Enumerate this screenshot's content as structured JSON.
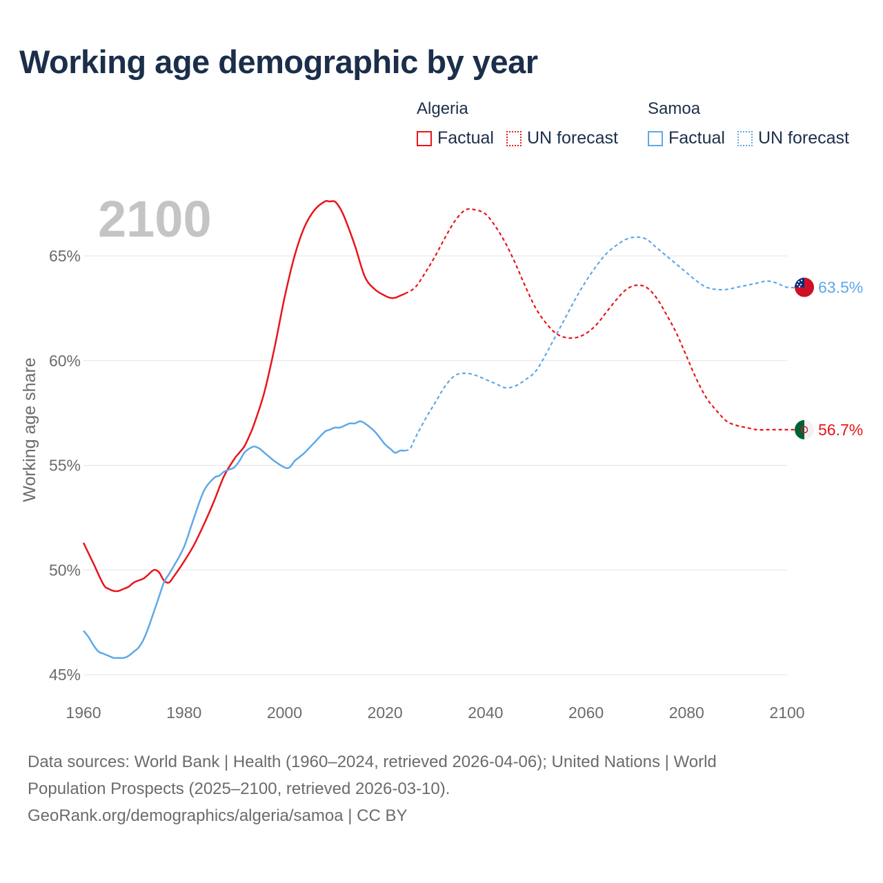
{
  "title": "Working age demographic by year",
  "legend": {
    "algeria": {
      "country": "Algeria",
      "factual": "Factual",
      "forecast": "UN forecast",
      "color": "#e8141a"
    },
    "samoa": {
      "country": "Samoa",
      "factual": "Factual",
      "forecast": "UN forecast",
      "color": "#5da8e8"
    }
  },
  "footer": {
    "line1": "Data sources: World Bank | Health (1960–2024, retrieved 2026-04-06); United Nations | World",
    "line2": "Population Prospects (2025–2100, retrieved 2026-03-10).",
    "line3": "GeoRank.org/demographics/algeria/samoa | CC BY"
  },
  "chart_data": {
    "type": "line",
    "year_label": "2100",
    "ylabel": "Working age share",
    "xlim": [
      1960,
      2100
    ],
    "ylim": [
      45,
      68
    ],
    "xticks": [
      1960,
      1980,
      2000,
      2020,
      2040,
      2060,
      2080,
      2100
    ],
    "xtick_labels": [
      "1960",
      "1980",
      "2000",
      "2020",
      "2040",
      "2060",
      "2080",
      "2100"
    ],
    "yticks": [
      45,
      50,
      55,
      60,
      65
    ],
    "ytick_labels": [
      "45%",
      "50%",
      "55%",
      "60%",
      "65%"
    ],
    "grid": true,
    "series": [
      {
        "name": "Algeria",
        "color": "#e8141a",
        "end_label": "56.7%",
        "factual": {
          "x": [
            1960,
            1962,
            1964,
            1965,
            1966,
            1967,
            1968,
            1969,
            1970,
            1971,
            1972,
            1973,
            1974,
            1975,
            1976,
            1977,
            1978,
            1980,
            1982,
            1984,
            1986,
            1988,
            1990,
            1991,
            1992,
            1993,
            1994,
            1996,
            1998,
            2000,
            2002,
            2004,
            2006,
            2008,
            2009,
            2010,
            2011,
            2012,
            2014,
            2016,
            2018,
            2020,
            2021,
            2022,
            2023,
            2024
          ],
          "y": [
            51.3,
            50.3,
            49.3,
            49.1,
            49.0,
            49.0,
            49.1,
            49.2,
            49.4,
            49.5,
            49.6,
            49.8,
            50.0,
            49.9,
            49.5,
            49.4,
            49.7,
            50.4,
            51.2,
            52.2,
            53.3,
            54.5,
            55.3,
            55.6,
            55.9,
            56.4,
            57.0,
            58.5,
            60.6,
            63.0,
            65.0,
            66.4,
            67.2,
            67.6,
            67.6,
            67.6,
            67.3,
            66.8,
            65.5,
            64.0,
            63.4,
            63.1,
            63.0,
            63.0,
            63.1,
            63.2
          ]
        },
        "forecast": {
          "x": [
            2024,
            2026,
            2028,
            2030,
            2032,
            2034,
            2036,
            2038,
            2040,
            2042,
            2044,
            2046,
            2048,
            2050,
            2052,
            2054,
            2056,
            2058,
            2060,
            2062,
            2064,
            2066,
            2068,
            2070,
            2072,
            2074,
            2076,
            2078,
            2080,
            2082,
            2084,
            2086,
            2088,
            2090,
            2092,
            2094,
            2096,
            2098,
            2100,
            2103
          ],
          "y": [
            63.2,
            63.5,
            64.2,
            65.0,
            65.9,
            66.7,
            67.2,
            67.2,
            67.0,
            66.4,
            65.6,
            64.6,
            63.5,
            62.5,
            61.8,
            61.3,
            61.1,
            61.1,
            61.3,
            61.7,
            62.3,
            62.9,
            63.4,
            63.6,
            63.5,
            63.0,
            62.2,
            61.3,
            60.2,
            59.1,
            58.2,
            57.6,
            57.1,
            56.9,
            56.8,
            56.7,
            56.7,
            56.7,
            56.7,
            56.7
          ]
        }
      },
      {
        "name": "Samoa",
        "color": "#5da8e8",
        "end_label": "63.5%",
        "factual": {
          "x": [
            1960,
            1961,
            1962,
            1963,
            1964,
            1965,
            1966,
            1967,
            1968,
            1969,
            1970,
            1971,
            1972,
            1973,
            1974,
            1975,
            1976,
            1977,
            1978,
            1980,
            1982,
            1984,
            1986,
            1987,
            1988,
            1989,
            1990,
            1991,
            1992,
            1993,
            1994,
            1995,
            1996,
            1997,
            1998,
            2000,
            2001,
            2002,
            2003,
            2004,
            2006,
            2008,
            2009,
            2010,
            2011,
            2012,
            2013,
            2014,
            2015,
            2016,
            2018,
            2020,
            2021,
            2022,
            2023,
            2024
          ],
          "y": [
            47.1,
            46.8,
            46.4,
            46.1,
            46.0,
            45.9,
            45.8,
            45.8,
            45.8,
            45.9,
            46.1,
            46.3,
            46.7,
            47.3,
            48.0,
            48.7,
            49.4,
            49.8,
            50.2,
            51.1,
            52.5,
            53.8,
            54.4,
            54.5,
            54.7,
            54.8,
            54.9,
            55.2,
            55.6,
            55.8,
            55.9,
            55.8,
            55.6,
            55.4,
            55.2,
            54.9,
            54.9,
            55.2,
            55.4,
            55.6,
            56.1,
            56.6,
            56.7,
            56.8,
            56.8,
            56.9,
            57.0,
            57.0,
            57.1,
            57.0,
            56.6,
            56.0,
            55.8,
            55.6,
            55.7,
            55.7
          ]
        },
        "forecast": {
          "x": [
            2024,
            2025,
            2026,
            2028,
            2030,
            2032,
            2034,
            2036,
            2038,
            2040,
            2042,
            2044,
            2046,
            2048,
            2050,
            2052,
            2054,
            2056,
            2058,
            2060,
            2062,
            2064,
            2066,
            2068,
            2070,
            2072,
            2074,
            2076,
            2078,
            2080,
            2082,
            2084,
            2086,
            2088,
            2090,
            2092,
            2094,
            2096,
            2098,
            2100,
            2103
          ],
          "y": [
            55.7,
            55.8,
            56.3,
            57.2,
            58.0,
            58.8,
            59.3,
            59.4,
            59.3,
            59.1,
            58.9,
            58.7,
            58.8,
            59.1,
            59.5,
            60.3,
            61.2,
            62.1,
            63.0,
            63.8,
            64.5,
            65.1,
            65.5,
            65.8,
            65.9,
            65.8,
            65.4,
            65.0,
            64.6,
            64.2,
            63.8,
            63.5,
            63.4,
            63.4,
            63.5,
            63.6,
            63.7,
            63.8,
            63.7,
            63.5,
            63.5
          ]
        }
      }
    ]
  }
}
